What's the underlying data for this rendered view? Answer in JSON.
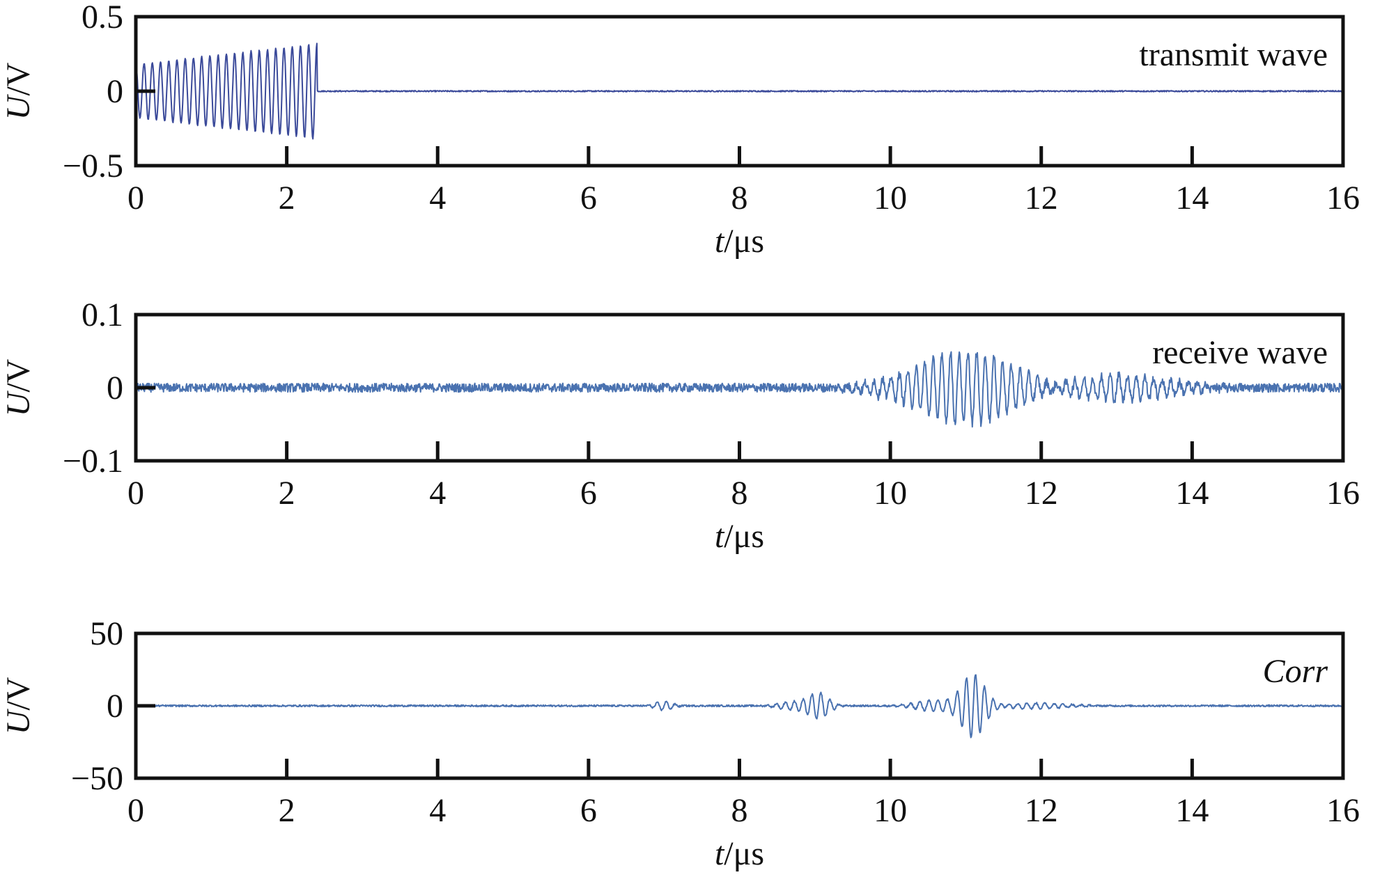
{
  "chart_data": [
    {
      "type": "line",
      "annotation": "transmit wave",
      "annotation_italic": false,
      "xlabel_italic": "t",
      "xlabel_unit": "/μs",
      "ylabel_italic": "U",
      "ylabel_unit": "/V",
      "xlim": [
        0,
        16
      ],
      "ylim": [
        -0.5,
        0.5
      ],
      "xticks": [
        0,
        2,
        4,
        6,
        8,
        10,
        12,
        14,
        16
      ],
      "xtick_labels": [
        "0",
        "2",
        "4",
        "6",
        "8",
        "10",
        "12",
        "14",
        "16"
      ],
      "yticks": [
        0.5,
        0,
        -0.5
      ],
      "ytick_labels": [
        "0.5",
        "0",
        "−0.5"
      ],
      "line_color": "#3b4a9a",
      "series": [
        {
          "signal": "chirp-burst",
          "burst_start_us": 0.0,
          "burst_end_us": 2.4,
          "amplitude_start": 0.18,
          "amplitude_end": 0.32,
          "cycles": 22,
          "baseline": 0.0,
          "noise": 0.004
        }
      ]
    },
    {
      "type": "line",
      "annotation": "receive wave",
      "annotation_italic": false,
      "xlabel_italic": "t",
      "xlabel_unit": "/μs",
      "ylabel_italic": "U",
      "ylabel_unit": "/V",
      "xlim": [
        0,
        16
      ],
      "ylim": [
        -0.1,
        0.1
      ],
      "xticks": [
        0,
        2,
        4,
        6,
        8,
        10,
        12,
        14,
        16
      ],
      "xtick_labels": [
        "0",
        "2",
        "4",
        "6",
        "8",
        "10",
        "12",
        "14",
        "16"
      ],
      "yticks": [
        0.1,
        0,
        -0.1
      ],
      "ytick_labels": [
        "0.1",
        "0",
        "−0.1"
      ],
      "line_color": "#4a72b0",
      "series": [
        {
          "signal": "noisy-packets",
          "noise": 0.006,
          "packets": [
            {
              "center_us": 11.0,
              "width_us": 0.9,
              "amplitude": 0.05,
              "period_us": 0.115
            },
            {
              "center_us": 13.0,
              "width_us": 0.9,
              "amplitude": 0.018,
              "period_us": 0.115
            },
            {
              "center_us": 10.0,
              "width_us": 0.4,
              "amplitude": 0.012,
              "period_us": 0.115
            }
          ]
        }
      ]
    },
    {
      "type": "line",
      "annotation": "Corr",
      "annotation_italic": true,
      "xlabel_italic": "t",
      "xlabel_unit": "/μs",
      "ylabel_italic": "U",
      "ylabel_unit": "/V",
      "xlim": [
        0,
        16
      ],
      "ylim": [
        -50,
        50
      ],
      "xticks": [
        0,
        2,
        4,
        6,
        8,
        10,
        12,
        14,
        16
      ],
      "xtick_labels": [
        "0",
        "2",
        "4",
        "6",
        "8",
        "10",
        "12",
        "14",
        "16"
      ],
      "yticks": [
        50,
        0,
        -50
      ],
      "ytick_labels": [
        "50",
        "0",
        "−50"
      ],
      "line_color": "#4a72b0",
      "series": [
        {
          "signal": "correlation-peaks",
          "noise": 0.6,
          "packets": [
            {
              "center_us": 11.1,
              "width_us": 0.22,
              "amplitude": 22,
              "period_us": 0.12
            },
            {
              "center_us": 10.6,
              "width_us": 0.35,
              "amplitude": 4,
              "period_us": 0.12
            },
            {
              "center_us": 9.05,
              "width_us": 0.18,
              "amplitude": 9,
              "period_us": 0.12
            },
            {
              "center_us": 8.7,
              "width_us": 0.25,
              "amplitude": 3,
              "period_us": 0.12
            },
            {
              "center_us": 7.0,
              "width_us": 0.15,
              "amplitude": 3,
              "period_us": 0.12
            },
            {
              "center_us": 11.9,
              "width_us": 0.6,
              "amplitude": 2,
              "period_us": 0.12
            }
          ]
        }
      ]
    }
  ]
}
